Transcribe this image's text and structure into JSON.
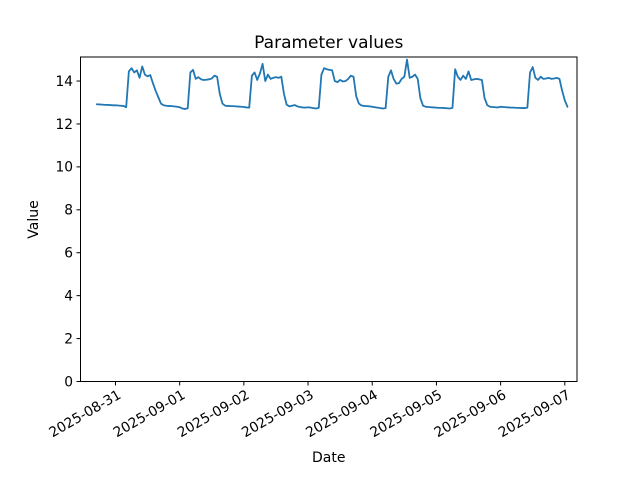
{
  "chart_data": {
    "type": "line",
    "title": "Parameter values",
    "xlabel": "Date",
    "ylabel": "Value",
    "line_color": "#1f77b4",
    "background_color": "#ffffff",
    "spine_color": "#000000",
    "grid": "off",
    "legend": "none",
    "x_tick_labels": [
      "2025-08-31",
      "2025-09-01",
      "2025-09-02",
      "2025-09-03",
      "2025-09-04",
      "2025-09-05",
      "2025-09-06",
      "2025-09-07"
    ],
    "y_ticks": [
      0,
      2,
      4,
      6,
      8,
      10,
      12,
      14
    ],
    "ylim": [
      0,
      15.12
    ],
    "xlim_days": [
      -0.545,
      7.19
    ],
    "series": [
      {
        "name": "parameter-values",
        "start": "2025-08-30 17:00",
        "start_day_offset": -0.291667,
        "interval_days": 0.0416667,
        "values": [
          12.92,
          12.91,
          12.9,
          12.89,
          12.89,
          12.88,
          12.87,
          12.87,
          12.86,
          12.85,
          12.84,
          12.78,
          14.45,
          14.6,
          14.4,
          14.5,
          14.15,
          14.68,
          14.3,
          14.22,
          14.28,
          13.9,
          13.55,
          13.25,
          12.95,
          12.87,
          12.85,
          12.84,
          12.83,
          12.82,
          12.8,
          12.78,
          12.72,
          12.7,
          12.73,
          14.4,
          14.52,
          14.1,
          14.18,
          14.08,
          14.05,
          14.06,
          14.08,
          14.12,
          14.25,
          14.2,
          13.4,
          12.95,
          12.85,
          12.84,
          12.83,
          12.83,
          12.82,
          12.81,
          12.8,
          12.79,
          12.77,
          12.76,
          14.25,
          14.4,
          14.05,
          14.35,
          14.8,
          14.0,
          14.3,
          14.1,
          14.15,
          14.18,
          14.15,
          14.2,
          13.4,
          12.9,
          12.82,
          12.85,
          12.88,
          12.82,
          12.79,
          12.77,
          12.76,
          12.78,
          12.76,
          12.74,
          12.72,
          12.75,
          14.3,
          14.6,
          14.55,
          14.52,
          14.5,
          14.0,
          13.95,
          14.05,
          13.98,
          14.0,
          14.1,
          14.25,
          14.2,
          13.3,
          12.95,
          12.86,
          12.84,
          12.83,
          12.82,
          12.8,
          12.78,
          12.76,
          12.74,
          12.72,
          12.74,
          14.2,
          14.5,
          14.1,
          13.88,
          13.9,
          14.1,
          14.2,
          15.0,
          14.15,
          14.2,
          14.3,
          14.1,
          13.2,
          12.85,
          12.8,
          12.79,
          12.78,
          12.77,
          12.76,
          12.75,
          12.75,
          12.74,
          12.73,
          12.72,
          12.75,
          14.55,
          14.2,
          14.05,
          14.25,
          14.1,
          14.45,
          14.05,
          14.08,
          14.1,
          14.08,
          14.05,
          13.2,
          12.88,
          12.8,
          12.79,
          12.78,
          12.77,
          12.8,
          12.79,
          12.78,
          12.77,
          12.76,
          12.76,
          12.75,
          12.75,
          12.74,
          12.74,
          12.76,
          14.4,
          14.65,
          14.15,
          14.05,
          14.2,
          14.1,
          14.12,
          14.15,
          14.1,
          14.12,
          14.15,
          14.1,
          13.55,
          13.1,
          12.8
        ]
      }
    ]
  }
}
